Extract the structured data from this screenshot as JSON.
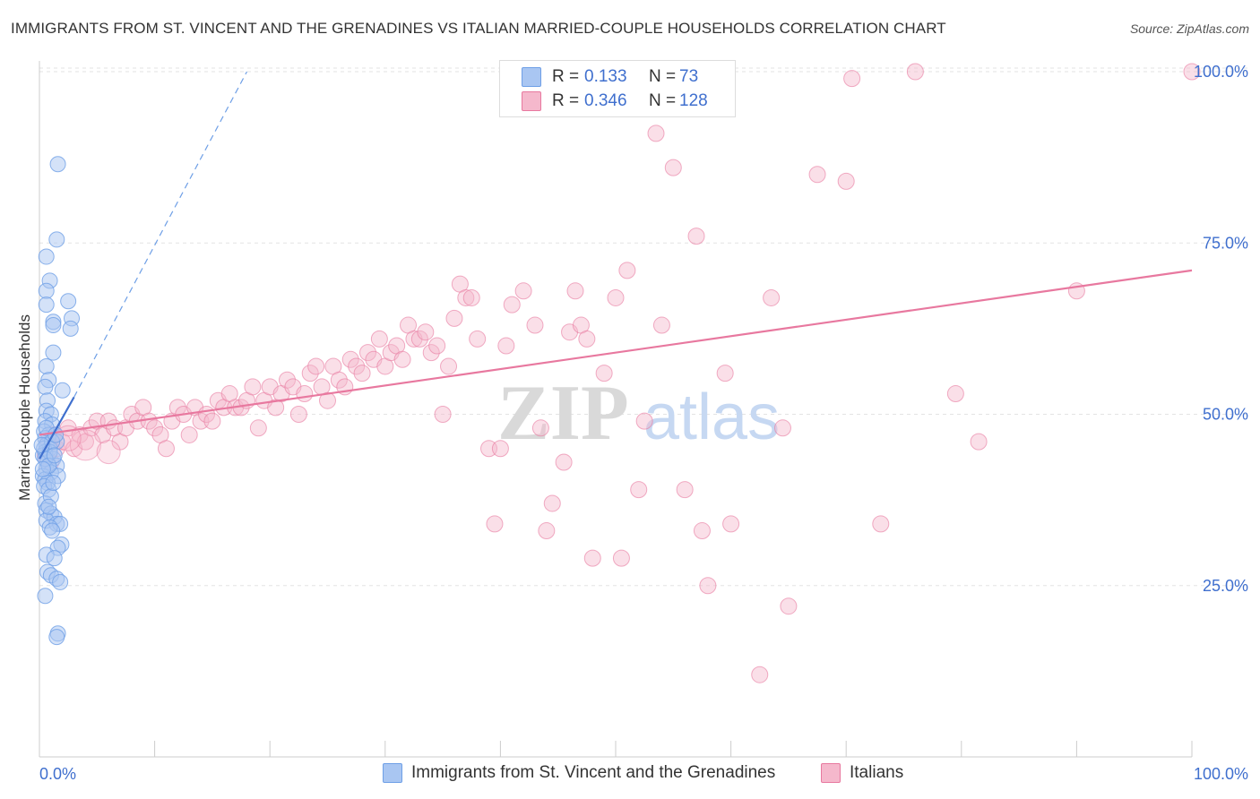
{
  "title": "IMMIGRANTS FROM ST. VINCENT AND THE GRENADINES VS ITALIAN MARRIED-COUPLE HOUSEHOLDS CORRELATION CHART",
  "source": "Source: ZipAtlas.com",
  "watermark": "ZIPatlas",
  "colors": {
    "blue": "#6e9fe6",
    "blue_fill": "#a9c6f2",
    "pink": "#e8789f",
    "pink_fill": "#f5b8cc",
    "axis_text": "#3f6fce"
  },
  "legend": {
    "rows": [
      {
        "r_label": "R =",
        "r_value": "0.133",
        "n_label": "N =",
        "n_value": "73"
      },
      {
        "r_label": "R =",
        "r_value": "0.346",
        "n_label": "N =",
        "n_value": "128"
      }
    ]
  },
  "bottom_legend": [
    {
      "label": "Immigrants from St. Vincent and the Grenadines"
    },
    {
      "label": "Italians"
    }
  ],
  "chart_data": {
    "type": "scatter",
    "title": "IMMIGRANTS FROM ST. VINCENT AND THE GRENADINES VS ITALIAN MARRIED-COUPLE HOUSEHOLDS CORRELATION CHART",
    "ylabel": "Married-couple Households",
    "xlabel": "",
    "xlim": [
      0,
      100
    ],
    "ylim": [
      0,
      105
    ],
    "x_tick_labels": [
      "0.0%",
      "100.0%"
    ],
    "y_tick_labels": [
      "25.0%",
      "50.0%",
      "75.0%",
      "100.0%"
    ],
    "y_ticks": [
      25,
      50,
      75,
      100
    ],
    "grid": true,
    "legend_position": "top-center",
    "series": [
      {
        "name": "Immigrants from St. Vincent and the Grenadines",
        "color": "#6e9fe6",
        "trend": {
          "x": [
            0,
            3.0
          ],
          "y": [
            43.5,
            52.5
          ],
          "dashed_extension_to": [
            18.0,
            100
          ]
        },
        "points": [
          [
            1.6,
            86.5
          ],
          [
            1.5,
            75.5
          ],
          [
            0.6,
            73
          ],
          [
            0.9,
            69.5
          ],
          [
            0.6,
            68
          ],
          [
            0.6,
            66
          ],
          [
            2.5,
            66.5
          ],
          [
            1.2,
            63.5
          ],
          [
            1.2,
            63
          ],
          [
            2.8,
            64
          ],
          [
            2.7,
            62.5
          ],
          [
            1.2,
            59
          ],
          [
            0.6,
            57
          ],
          [
            0.8,
            55
          ],
          [
            0.5,
            54
          ],
          [
            2.0,
            53.5
          ],
          [
            0.7,
            52
          ],
          [
            0.6,
            50.5
          ],
          [
            1.0,
            50
          ],
          [
            0.5,
            49
          ],
          [
            1.1,
            48.5
          ],
          [
            0.4,
            47.5
          ],
          [
            0.8,
            47
          ],
          [
            0.5,
            46.5
          ],
          [
            1.5,
            46
          ],
          [
            0.6,
            45.5
          ],
          [
            0.9,
            45
          ],
          [
            0.5,
            44.5
          ],
          [
            0.3,
            44
          ],
          [
            1.2,
            43.5
          ],
          [
            0.7,
            43
          ],
          [
            1.5,
            42.5
          ],
          [
            0.6,
            42
          ],
          [
            1.0,
            41.5
          ],
          [
            0.3,
            41
          ],
          [
            1.6,
            41
          ],
          [
            0.5,
            40.5
          ],
          [
            0.7,
            40
          ],
          [
            0.4,
            39.5
          ],
          [
            0.8,
            39
          ],
          [
            0.5,
            37
          ],
          [
            0.6,
            36
          ],
          [
            1.0,
            35.5
          ],
          [
            1.3,
            35
          ],
          [
            0.6,
            34.5
          ],
          [
            1.5,
            34
          ],
          [
            1.8,
            34
          ],
          [
            0.9,
            33.5
          ],
          [
            1.1,
            33
          ],
          [
            1.9,
            31
          ],
          [
            1.6,
            30.5
          ],
          [
            0.6,
            29.5
          ],
          [
            1.3,
            29
          ],
          [
            0.7,
            27
          ],
          [
            1.0,
            26.5
          ],
          [
            1.5,
            26
          ],
          [
            1.8,
            25.5
          ],
          [
            0.5,
            23.5
          ],
          [
            1.6,
            18
          ],
          [
            1.5,
            17.5
          ],
          [
            0.4,
            45
          ],
          [
            0.9,
            44.5
          ],
          [
            1.1,
            46
          ],
          [
            0.5,
            43.5
          ],
          [
            0.8,
            42.5
          ],
          [
            1.3,
            44
          ],
          [
            0.2,
            45.5
          ],
          [
            0.6,
            48
          ],
          [
            1.4,
            47
          ],
          [
            0.3,
            42
          ],
          [
            1.0,
            38
          ],
          [
            0.8,
            36.5
          ],
          [
            1.2,
            40
          ]
        ]
      },
      {
        "name": "Italians",
        "color": "#e8789f",
        "trend": {
          "x": [
            0,
            100
          ],
          "y": [
            47.0,
            71.0
          ]
        },
        "points": [
          [
            0.5,
            44
          ],
          [
            0.8,
            46
          ],
          [
            1.0,
            43
          ],
          [
            1.2,
            47
          ],
          [
            1.5,
            45
          ],
          [
            2.0,
            46
          ],
          [
            2.5,
            48
          ],
          [
            3.0,
            45
          ],
          [
            3.5,
            47
          ],
          [
            4.0,
            46
          ],
          [
            4.5,
            48
          ],
          [
            5.0,
            49
          ],
          [
            5.5,
            47
          ],
          [
            6.0,
            49
          ],
          [
            6.5,
            48
          ],
          [
            7.0,
            46
          ],
          [
            7.5,
            48
          ],
          [
            8.0,
            50
          ],
          [
            8.5,
            49
          ],
          [
            9.0,
            51
          ],
          [
            9.5,
            49
          ],
          [
            10.0,
            48
          ],
          [
            10.5,
            47
          ],
          [
            11.0,
            45
          ],
          [
            11.5,
            49
          ],
          [
            12.0,
            51
          ],
          [
            12.5,
            50
          ],
          [
            13.0,
            47
          ],
          [
            13.5,
            51
          ],
          [
            14.0,
            49
          ],
          [
            14.5,
            50
          ],
          [
            15.0,
            49
          ],
          [
            15.5,
            52
          ],
          [
            16.0,
            51
          ],
          [
            16.5,
            53
          ],
          [
            17.0,
            51
          ],
          [
            17.5,
            51
          ],
          [
            18.0,
            52
          ],
          [
            18.5,
            54
          ],
          [
            19.0,
            48
          ],
          [
            19.5,
            52
          ],
          [
            20.0,
            54
          ],
          [
            20.5,
            51
          ],
          [
            21.0,
            53
          ],
          [
            21.5,
            55
          ],
          [
            22.0,
            54
          ],
          [
            22.5,
            50
          ],
          [
            23.0,
            53
          ],
          [
            23.5,
            56
          ],
          [
            24.0,
            57
          ],
          [
            24.5,
            54
          ],
          [
            25.0,
            52
          ],
          [
            25.5,
            57
          ],
          [
            26.0,
            55
          ],
          [
            26.5,
            54
          ],
          [
            27.0,
            58
          ],
          [
            27.5,
            57
          ],
          [
            28.0,
            56
          ],
          [
            28.5,
            59
          ],
          [
            29.0,
            58
          ],
          [
            29.5,
            61
          ],
          [
            30.0,
            57
          ],
          [
            30.5,
            59
          ],
          [
            31.0,
            60
          ],
          [
            31.5,
            58
          ],
          [
            32.0,
            63
          ],
          [
            32.5,
            61
          ],
          [
            33.0,
            61
          ],
          [
            33.5,
            62
          ],
          [
            34.0,
            59
          ],
          [
            34.5,
            60
          ],
          [
            35.0,
            50
          ],
          [
            35.5,
            57
          ],
          [
            36.0,
            64
          ],
          [
            36.5,
            69
          ],
          [
            37.0,
            67
          ],
          [
            37.5,
            67
          ],
          [
            38.0,
            61
          ],
          [
            39.0,
            45
          ],
          [
            39.5,
            34
          ],
          [
            40.0,
            45
          ],
          [
            40.5,
            60
          ],
          [
            41.0,
            66
          ],
          [
            42.0,
            68
          ],
          [
            43.0,
            63
          ],
          [
            43.5,
            48
          ],
          [
            44.0,
            33
          ],
          [
            44.5,
            37
          ],
          [
            45.5,
            43
          ],
          [
            46.0,
            62
          ],
          [
            46.5,
            68
          ],
          [
            47.0,
            63
          ],
          [
            47.5,
            61
          ],
          [
            48.0,
            29
          ],
          [
            49.0,
            56
          ],
          [
            50.0,
            67
          ],
          [
            50.5,
            29
          ],
          [
            51.0,
            71
          ],
          [
            52.0,
            39
          ],
          [
            52.5,
            49
          ],
          [
            53.5,
            91
          ],
          [
            54.0,
            63
          ],
          [
            55.0,
            86
          ],
          [
            56.0,
            39
          ],
          [
            57.0,
            76
          ],
          [
            57.5,
            33
          ],
          [
            58.0,
            25
          ],
          [
            58.5,
            100
          ],
          [
            59.5,
            56
          ],
          [
            60.0,
            34
          ],
          [
            62.5,
            12
          ],
          [
            63.5,
            67
          ],
          [
            64.5,
            48
          ],
          [
            65.0,
            22
          ],
          [
            67.5,
            85
          ],
          [
            70.0,
            84
          ],
          [
            70.5,
            99
          ],
          [
            73.0,
            34
          ],
          [
            76.0,
            100
          ],
          [
            79.5,
            53
          ],
          [
            81.5,
            46
          ],
          [
            90.0,
            68
          ],
          [
            100.0,
            100
          ]
        ]
      }
    ]
  }
}
